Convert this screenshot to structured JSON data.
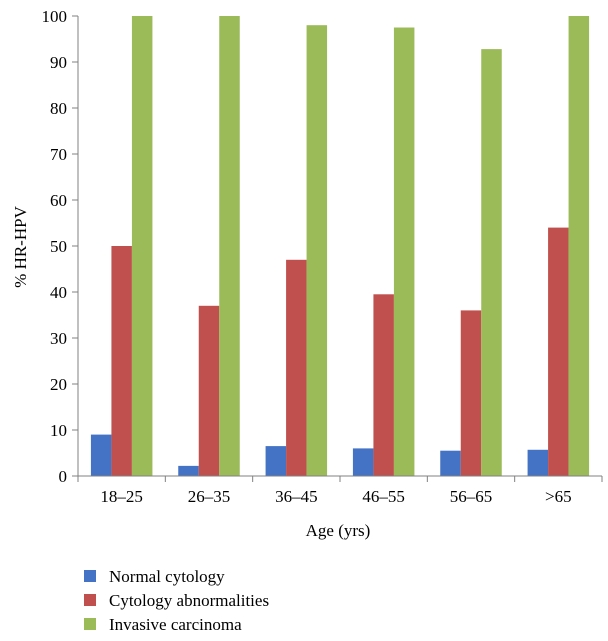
{
  "chart_data": {
    "type": "bar",
    "title": "",
    "xlabel": "Age (yrs)",
    "ylabel": "% HR-HPV",
    "ylim": [
      0,
      100
    ],
    "yticks": [
      0,
      10,
      20,
      30,
      40,
      50,
      60,
      70,
      80,
      90,
      100
    ],
    "grid": false,
    "legend_position": "bottom",
    "categories": [
      "18–25",
      "26–35",
      "36–45",
      "46–55",
      "56–65",
      ">65"
    ],
    "series": [
      {
        "name": "Normal cytology",
        "color": "#4472C4",
        "values": [
          9,
          2.2,
          6.5,
          6,
          5.5,
          5.7
        ]
      },
      {
        "name": "Cytology abnormalities",
        "color": "#C0504D",
        "values": [
          50,
          37,
          47,
          39.5,
          36,
          54
        ]
      },
      {
        "name": "Invasive carcinoma",
        "color": "#9BBB59",
        "values": [
          100,
          100,
          98,
          97.5,
          92.8,
          100
        ]
      }
    ]
  }
}
